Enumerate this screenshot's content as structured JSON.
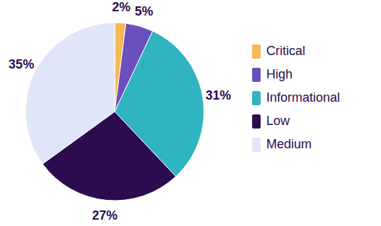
{
  "chart_data": {
    "type": "pie",
    "categories": [
      "Critical",
      "High",
      "Informational",
      "Low",
      "Medium"
    ],
    "values": [
      2,
      5,
      31,
      27,
      35
    ],
    "value_labels": [
      "2%",
      "5%",
      "31%",
      "27%",
      "35%"
    ],
    "colors": [
      "#f7b955",
      "#6a4fbd",
      "#2fb4c0",
      "#2b0c4f",
      "#e1e5f8"
    ],
    "data_labels": true,
    "legend": "right"
  }
}
